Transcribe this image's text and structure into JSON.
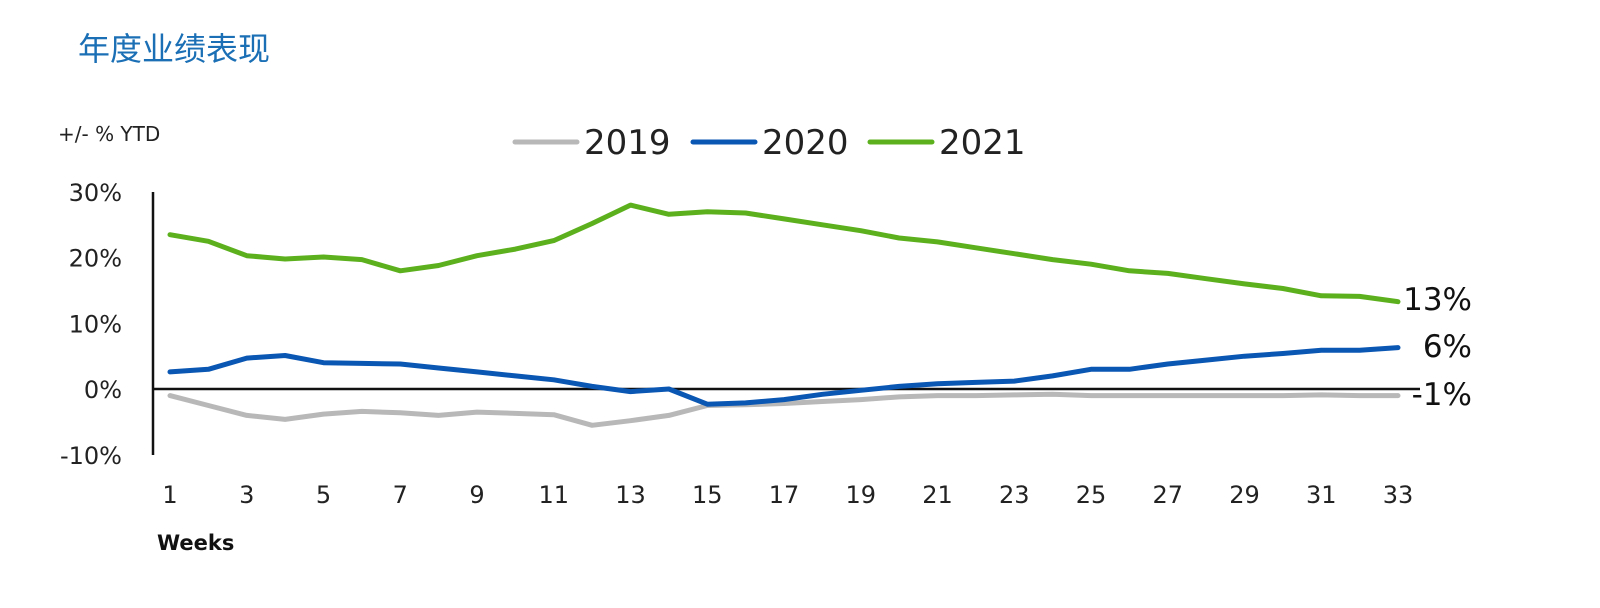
{
  "title": "年度业绩表现",
  "chart_data": {
    "type": "line",
    "ylabel": "+/- % YTD",
    "xlabel": "Weeks",
    "x": [
      1,
      2,
      3,
      4,
      5,
      6,
      7,
      8,
      9,
      10,
      11,
      12,
      13,
      14,
      15,
      16,
      17,
      18,
      19,
      20,
      21,
      22,
      23,
      24,
      25,
      26,
      27,
      28,
      29,
      30,
      31,
      32,
      33
    ],
    "x_tick_labels": [
      "1",
      "3",
      "5",
      "7",
      "9",
      "11",
      "13",
      "15",
      "17",
      "19",
      "21",
      "23",
      "25",
      "27",
      "29",
      "31",
      "33"
    ],
    "ylim": [
      -10,
      30
    ],
    "y_ticks": [
      -10,
      0,
      10,
      20,
      30
    ],
    "y_tick_labels": [
      "-10%",
      "0%",
      "10%",
      "20%",
      "30%"
    ],
    "legend_position": "top",
    "series": [
      {
        "name": "2019",
        "color": "#b8b8b8",
        "values": [
          -1,
          -2.5,
          -4,
          -4.6,
          -3.8,
          -3.4,
          -3.6,
          -4,
          -3.5,
          -3.7,
          -3.9,
          -5.5,
          -4.8,
          -4,
          -2.5,
          -2.4,
          -2.2,
          -1.9,
          -1.6,
          -1.2,
          -1,
          -1,
          -0.9,
          -0.8,
          -1,
          -1,
          -1,
          -1,
          -1,
          -1,
          -0.9,
          -1,
          -1
        ],
        "end_label": "-1%"
      },
      {
        "name": "2020",
        "color": "#0a56b3",
        "values": [
          2.6,
          3,
          4.7,
          5.1,
          4,
          3.9,
          3.8,
          3.2,
          2.6,
          2,
          1.4,
          0.4,
          -0.4,
          0,
          -2.3,
          -2.1,
          -1.6,
          -0.8,
          -0.2,
          0.4,
          0.8,
          1,
          1.2,
          2,
          3,
          3,
          3.8,
          4.4,
          5,
          5.4,
          5.9,
          5.9,
          6.3
        ],
        "end_label": "6%"
      },
      {
        "name": "2021",
        "color": "#5cb01e",
        "values": [
          23.5,
          22.5,
          20.3,
          19.8,
          20.1,
          19.7,
          18,
          18.8,
          20.3,
          21.3,
          22.6,
          25.2,
          28,
          26.6,
          27,
          26.8,
          25.9,
          25,
          24.1,
          23,
          22.4,
          21.5,
          20.6,
          19.7,
          19,
          18,
          17.6,
          16.8,
          16,
          15.3,
          14.2,
          14.1,
          13.3
        ],
        "end_label": "13%"
      }
    ]
  }
}
